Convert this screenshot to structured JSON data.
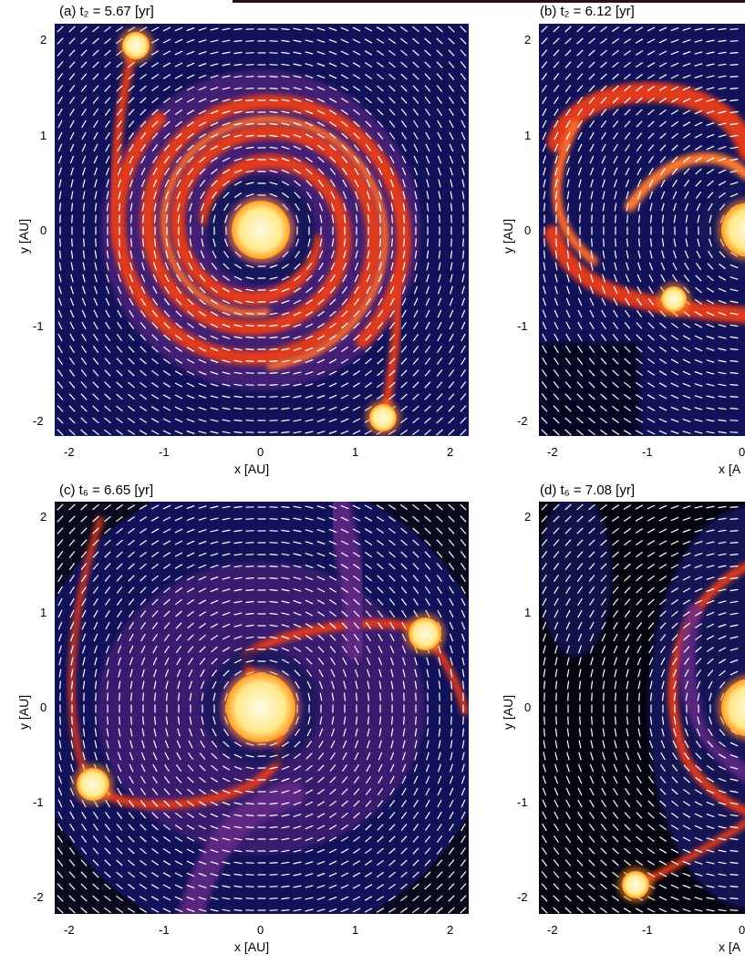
{
  "figure": {
    "panels": [
      {
        "id": "a",
        "title": "(a) t₂ = 5.67 [yr]",
        "xlabel": "x [AU]",
        "ylabel": "y [AU]",
        "xticks": [
          "-2",
          "-1",
          "0",
          "1",
          "2"
        ],
        "yticks": [
          "2",
          "1",
          "0",
          "-1",
          "-2"
        ]
      },
      {
        "id": "b",
        "title": "(b) t₂ = 6.12 [yr]",
        "xlabel": "x [A",
        "ylabel": "y [AU]",
        "xticks": [
          "-2",
          "-1",
          "0"
        ],
        "yticks": [
          "2",
          "1",
          "0",
          "-1",
          "-2"
        ]
      },
      {
        "id": "c",
        "title": "(c) t₆ = 6.65 [yr]",
        "xlabel": "x [AU]",
        "ylabel": "y [AU]",
        "xticks": [
          "-2",
          "-1",
          "0",
          "1",
          "2"
        ],
        "yticks": [
          "2",
          "1",
          "0",
          "-1",
          "-2"
        ]
      },
      {
        "id": "d",
        "title": "(d) t₆ = 7.08 [yr]",
        "xlabel": "x [A",
        "ylabel": "y [AU]",
        "xticks": [
          "-2",
          "-1",
          "0"
        ],
        "yticks": [
          "2",
          "1",
          "0",
          "-1",
          "-2"
        ]
      }
    ],
    "colors": {
      "background_low": "#12125a",
      "mid_density": "#6a2a8a",
      "high_density": "#e03a1c",
      "peak_density": "#ffe98a",
      "velocity_arrows": "#ffffff"
    }
  }
}
